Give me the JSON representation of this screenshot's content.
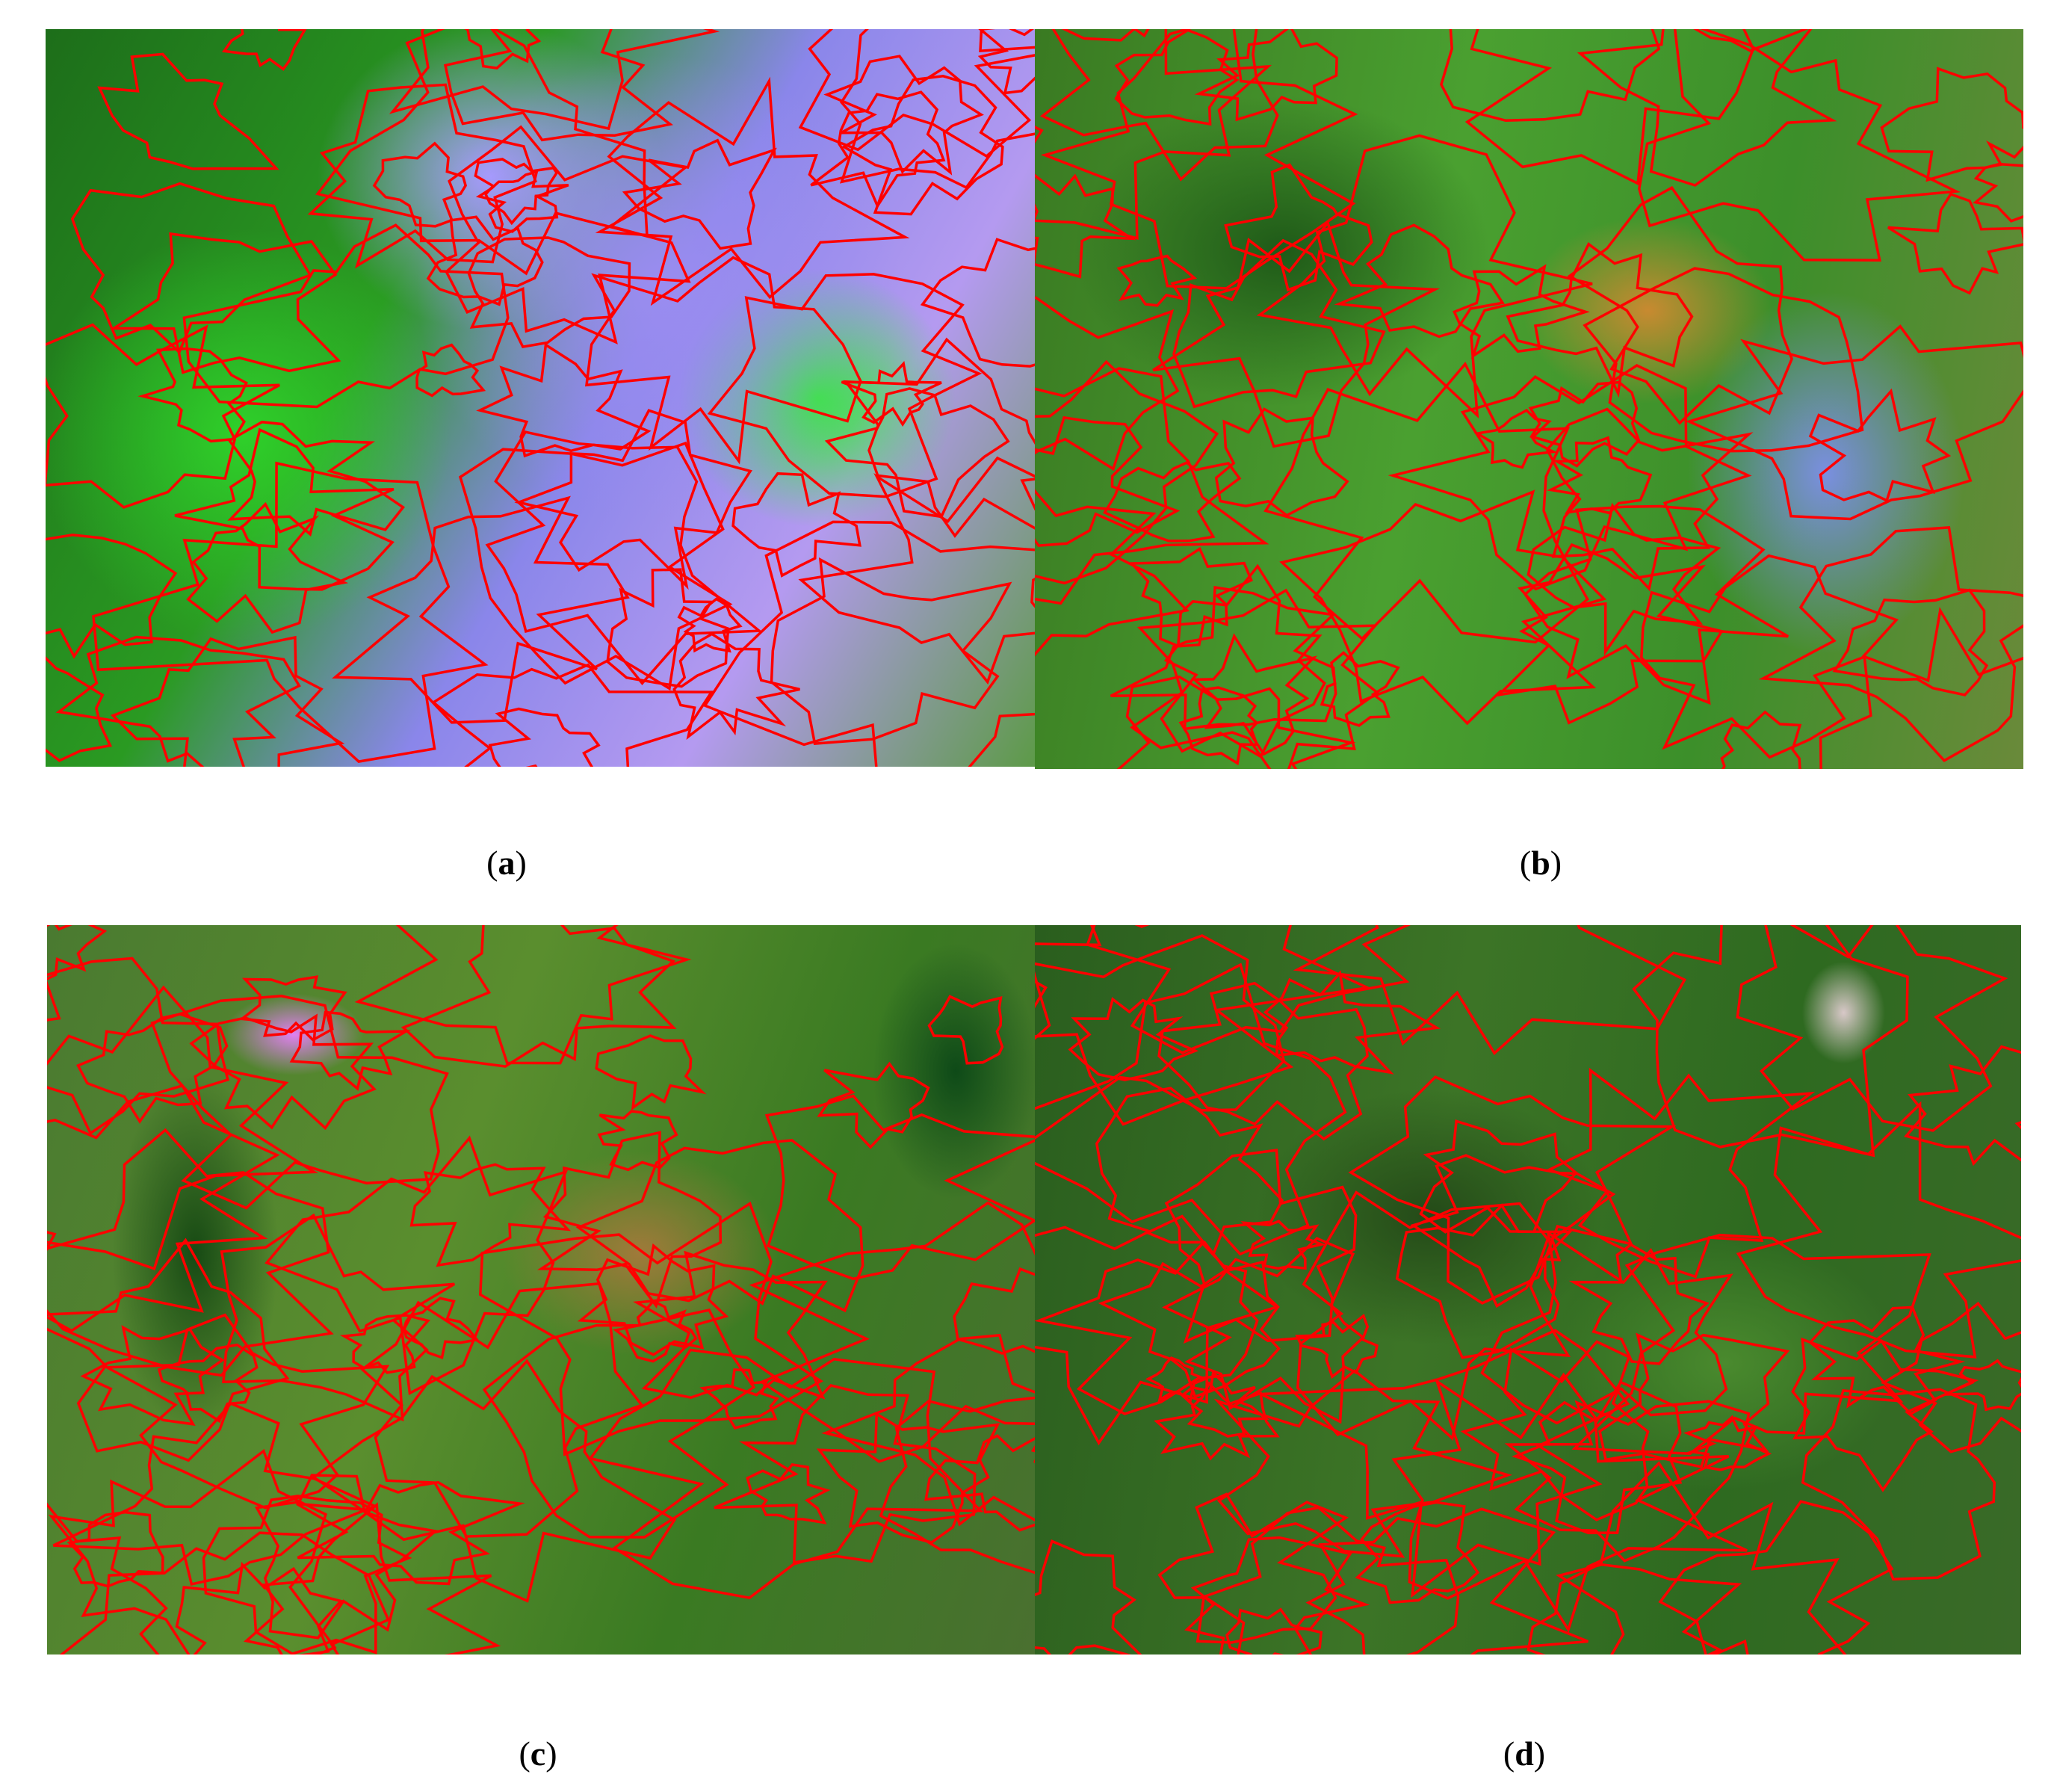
{
  "figure": {
    "panels": [
      {
        "id": "a",
        "label": "a",
        "contour_color": "#ff0000"
      },
      {
        "id": "b",
        "label": "b",
        "contour_color": "#ff0000"
      },
      {
        "id": "c",
        "label": "c",
        "contour_color": "#ff0000"
      },
      {
        "id": "d",
        "label": "d",
        "contour_color": "#ff0000"
      }
    ]
  }
}
